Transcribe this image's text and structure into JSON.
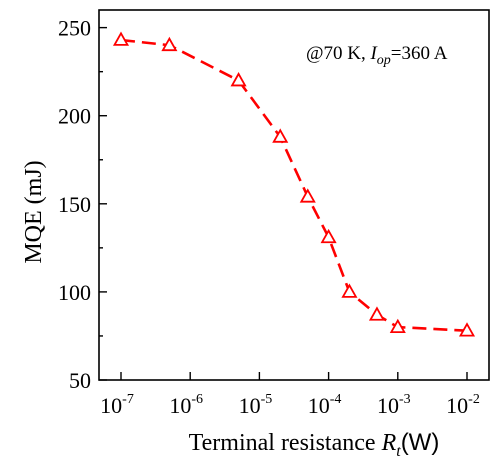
{
  "chart_data": {
    "type": "line",
    "title": "",
    "xlabel": "Terminal resistance ",
    "xlabel_var": "R",
    "xlabel_sub": "t",
    "xlabel_unit": "(W)",
    "ylabel": "MQE (mJ)",
    "x_scale": "log",
    "xlim": [
      1e-07,
      0.01
    ],
    "ylim": [
      50,
      260
    ],
    "x_ticks": [
      {
        "value": 1e-07,
        "base": "10",
        "exp": "-7"
      },
      {
        "value": 1e-06,
        "base": "10",
        "exp": "-6"
      },
      {
        "value": 1e-05,
        "base": "10",
        "exp": "-5"
      },
      {
        "value": 0.0001,
        "base": "10",
        "exp": "-4"
      },
      {
        "value": 0.001,
        "base": "10",
        "exp": "-3"
      },
      {
        "value": 0.01,
        "base": "10",
        "exp": "-2"
      }
    ],
    "y_ticks": [
      50,
      100,
      150,
      200,
      250
    ],
    "grid": false,
    "series": [
      {
        "color": "#ff0000",
        "line_style": "dashed",
        "marker": "open-triangle",
        "x": [
          1e-07,
          5e-07,
          5e-06,
          2e-05,
          5e-05,
          0.0001,
          0.0002,
          0.0005,
          0.001,
          0.01
        ],
        "y": [
          243,
          240,
          220,
          188,
          154,
          131,
          100,
          87,
          80,
          78
        ]
      }
    ],
    "annotation": {
      "prefix": "@70 K, ",
      "var": "I",
      "sub": "op",
      "suffix": "=360 A"
    }
  }
}
